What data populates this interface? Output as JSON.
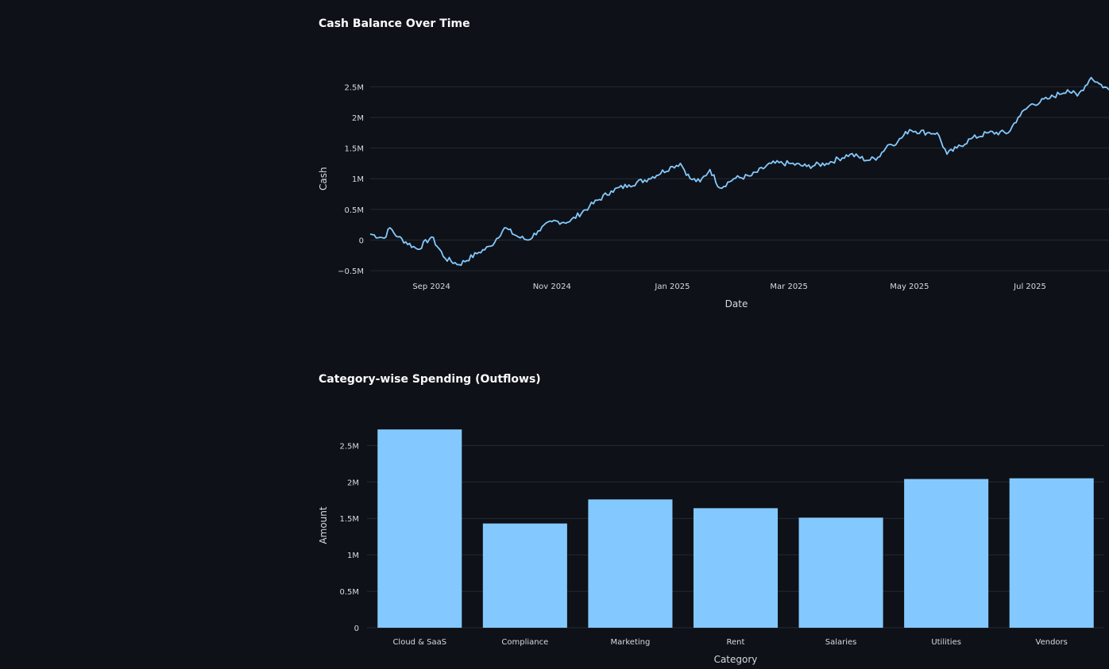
{
  "chart_data": [
    {
      "type": "line",
      "title": "Cash Balance Over Time",
      "xlabel": "Date",
      "ylabel": "Cash",
      "color": "#83c9ff",
      "x_start": "2024-08-01",
      "x_end": "2025-08-10",
      "xlim": [
        "2024-08-01",
        "2025-08-10"
      ],
      "ylim": [
        -0.55,
        2.75
      ],
      "ytick_values": [
        -0.5,
        0,
        0.5,
        1,
        1.5,
        2,
        2.5
      ],
      "ytick_labels": [
        "−0.5M",
        "0",
        "0.5M",
        "1M",
        "1.5M",
        "2M",
        "2.5M"
      ],
      "xtick_dates": [
        "2024-09-01",
        "2024-11-01",
        "2025-01-01",
        "2025-03-01",
        "2025-05-01",
        "2025-07-01"
      ],
      "xtick_labels": [
        "Sep 2024",
        "Nov 2024",
        "Jan 2025",
        "Mar 2025",
        "May 2025",
        "Jul 2025"
      ],
      "grid": true,
      "series": [
        {
          "x": [
            "2024-08-01",
            "2024-08-08",
            "2024-08-11",
            "2024-08-15",
            "2024-08-25",
            "2024-09-01",
            "2024-09-08",
            "2024-09-15",
            "2024-09-25",
            "2024-10-01",
            "2024-10-08",
            "2024-10-15",
            "2024-10-20",
            "2024-10-25",
            "2024-11-01",
            "2024-11-10",
            "2024-11-20",
            "2024-12-01",
            "2024-12-10",
            "2024-12-20",
            "2025-01-01",
            "2025-01-05",
            "2025-01-10",
            "2025-01-15",
            "2025-01-20",
            "2025-01-25",
            "2025-02-01",
            "2025-02-10",
            "2025-02-20",
            "2025-03-01",
            "2025-03-10",
            "2025-03-20",
            "2025-04-01",
            "2025-04-10",
            "2025-04-15",
            "2025-04-20",
            "2025-04-25",
            "2025-05-01",
            "2025-05-10",
            "2025-05-15",
            "2025-05-20",
            "2025-05-25",
            "2025-06-01",
            "2025-06-10",
            "2025-06-20",
            "2025-06-25",
            "2025-07-01",
            "2025-07-10",
            "2025-07-20",
            "2025-07-25",
            "2025-08-01",
            "2025-08-05",
            "2025-08-10"
          ],
          "y": [
            0.1,
            0.03,
            0.2,
            0.05,
            -0.15,
            0.05,
            -0.3,
            -0.4,
            -0.2,
            -0.1,
            0.2,
            0.05,
            0.0,
            0.15,
            0.3,
            0.3,
            0.55,
            0.8,
            0.9,
            1.0,
            1.2,
            1.25,
            1.0,
            0.95,
            1.15,
            0.85,
            1.0,
            1.05,
            1.25,
            1.25,
            1.2,
            1.25,
            1.4,
            1.3,
            1.35,
            1.55,
            1.6,
            1.8,
            1.75,
            1.75,
            1.4,
            1.5,
            1.65,
            1.75,
            1.75,
            2.0,
            2.2,
            2.3,
            2.45,
            2.35,
            2.65,
            2.55,
            2.45
          ]
        }
      ]
    },
    {
      "type": "bar",
      "title": "Category-wise Spending (Outflows)",
      "xlabel": "Category",
      "ylabel": "Amount",
      "color": "#83c9ff",
      "categories": [
        "Cloud & SaaS",
        "Compliance",
        "Marketing",
        "Rent",
        "Salaries",
        "Utilities",
        "Vendors"
      ],
      "values": [
        2.72,
        1.43,
        1.76,
        1.64,
        1.51,
        2.04,
        2.05
      ],
      "ylim": [
        0,
        2.95
      ],
      "ytick_values": [
        0,
        0.5,
        1,
        1.5,
        2,
        2.5
      ],
      "ytick_labels": [
        "0",
        "0.5M",
        "1M",
        "1.5M",
        "2M",
        "2.5M"
      ],
      "grid": true
    }
  ]
}
